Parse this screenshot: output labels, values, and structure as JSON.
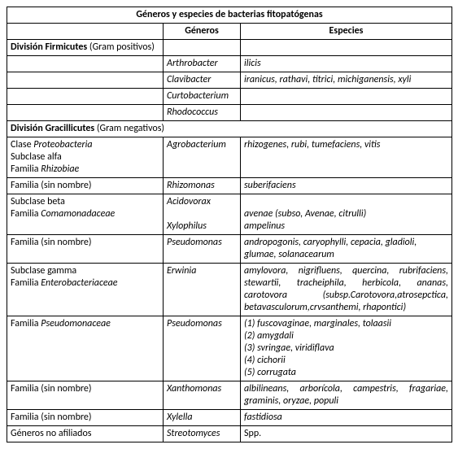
{
  "table": {
    "title": "Géneros y especies de bacterias fitopatógenas",
    "header_generos": "Géneros",
    "header_especies": "Especies",
    "firmicutes_label": "División Firmicutes",
    "firmicutes_note": " (Gram positivos)",
    "firm_rows": [
      {
        "genero": "Arthrobacter",
        "especies": "ilicis"
      },
      {
        "genero": "Clavibacter",
        "especies": "iranicus, rathavi, titrici, michiganensis, xyli"
      },
      {
        "genero": "Curtobacterium",
        "especies": ""
      },
      {
        "genero": "Rhodococcus",
        "especies": ""
      }
    ],
    "gracillicutes_label": "División Gracillicutes",
    "gracillicutes_note": " (Gram negativos)",
    "proteo_class": "Clase ",
    "proteo_class_i": "Proteobacteria",
    "sub_alfa": "Subclase alfa",
    "fam_rhizo": "Familia ",
    "fam_rhizo_i": "Rhizobiae",
    "agro_genero": "Agrobacterium",
    "agro_especies": "rhizogenes, rubi, tumefaciens, vitis",
    "fam_sin_nombre": "Familia (sin nombre)",
    "rhizomonas_g": "Rhizomonas",
    "rhizomonas_e": "suberifaciens",
    "sub_beta": "Subclase beta",
    "fam_coma": "Familia ",
    "fam_coma_i": "Comamonadaceae",
    "acido_g": "Acidovorax",
    "acido_e": "avenae (subso, Avenae, citrulli)",
    "xylo_g": "Xylophilus",
    "xylo_e": "ampelinus",
    "pseudo_g": "Pseudomonas",
    "pseudo_e": "andropogonis, caryophylli, cepacia, gladioli, glumae, solanacearum",
    "sub_gamma": "Subclase gamma",
    "fam_entero_pre": " Familia ",
    "fam_entero_i": "Enterobacteriaceae",
    "erwinia_g": "Erwinia",
    "erwinia_e": "amylovora, nigrifluens, quercina, rubrifaciens, stewartii, tracheiphila, herbicola, ananas, carotovora  (subsp.Carotovora,atrosepctica, betavasculorum,crvsanthemi, rhapontici)",
    "fam_pseudo": "Familia ",
    "fam_pseudo_i": "Pseudomonaceae",
    "pseudo2_g": "Pseudomonas",
    "pseudo2_e": {
      "l1": "(1) fuscovaginae, marginales, tolaasii",
      "l2": "(2) amygdali",
      "l3": "(3) svringae, viridiflava",
      "l4": "(4) cichorii",
      "l5": "(5) corrugata"
    },
    "xantho_g": "Xanthomonas",
    "xantho_e": "albilineans, arborícola, campestris, fragariae, graminis, oryzae, populi",
    "xylella_g": "Xylella",
    "xylella_e": "fastidiosa",
    "gen_no_afil": "Géneros no afiliados",
    "strepto_g": "Streotomyces",
    "strepto_e": "Spp."
  }
}
